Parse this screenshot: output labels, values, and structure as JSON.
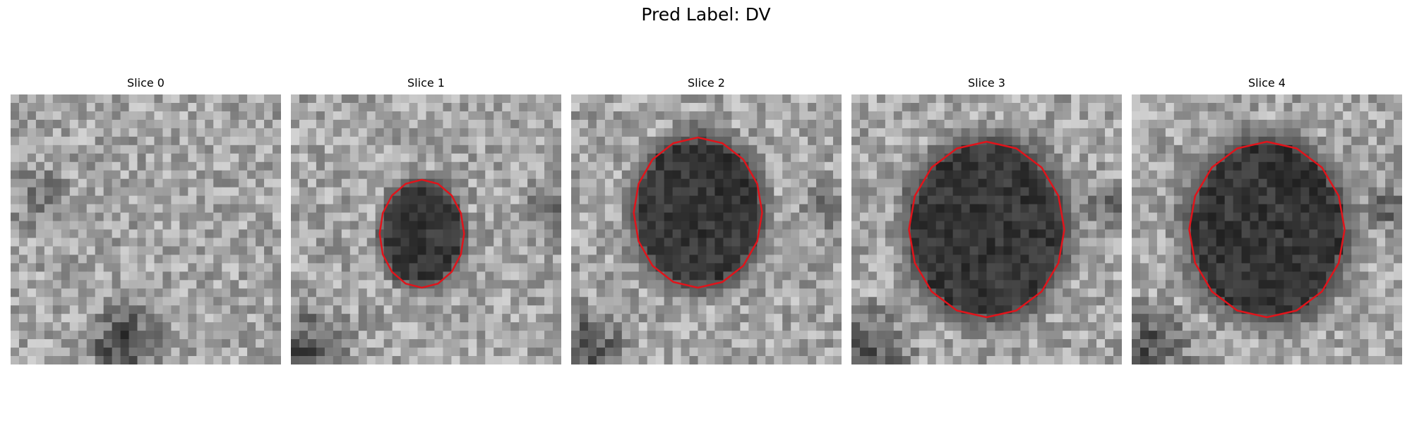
{
  "figure": {
    "suptitle": "Pred Label: DV"
  },
  "panels": [
    {
      "title": "Slice 0",
      "texture": "noise",
      "contour": false
    },
    {
      "title": "Slice 1",
      "texture": "small-blob",
      "contour": true
    },
    {
      "title": "Slice 2",
      "texture": "medium-blob",
      "contour": true
    },
    {
      "title": "Slice 3",
      "texture": "large-blob",
      "contour": true
    },
    {
      "title": "Slice 4",
      "texture": "large-blob",
      "contour": true
    }
  ],
  "contour_color": "#e0141b",
  "image_colormap": "gray"
}
